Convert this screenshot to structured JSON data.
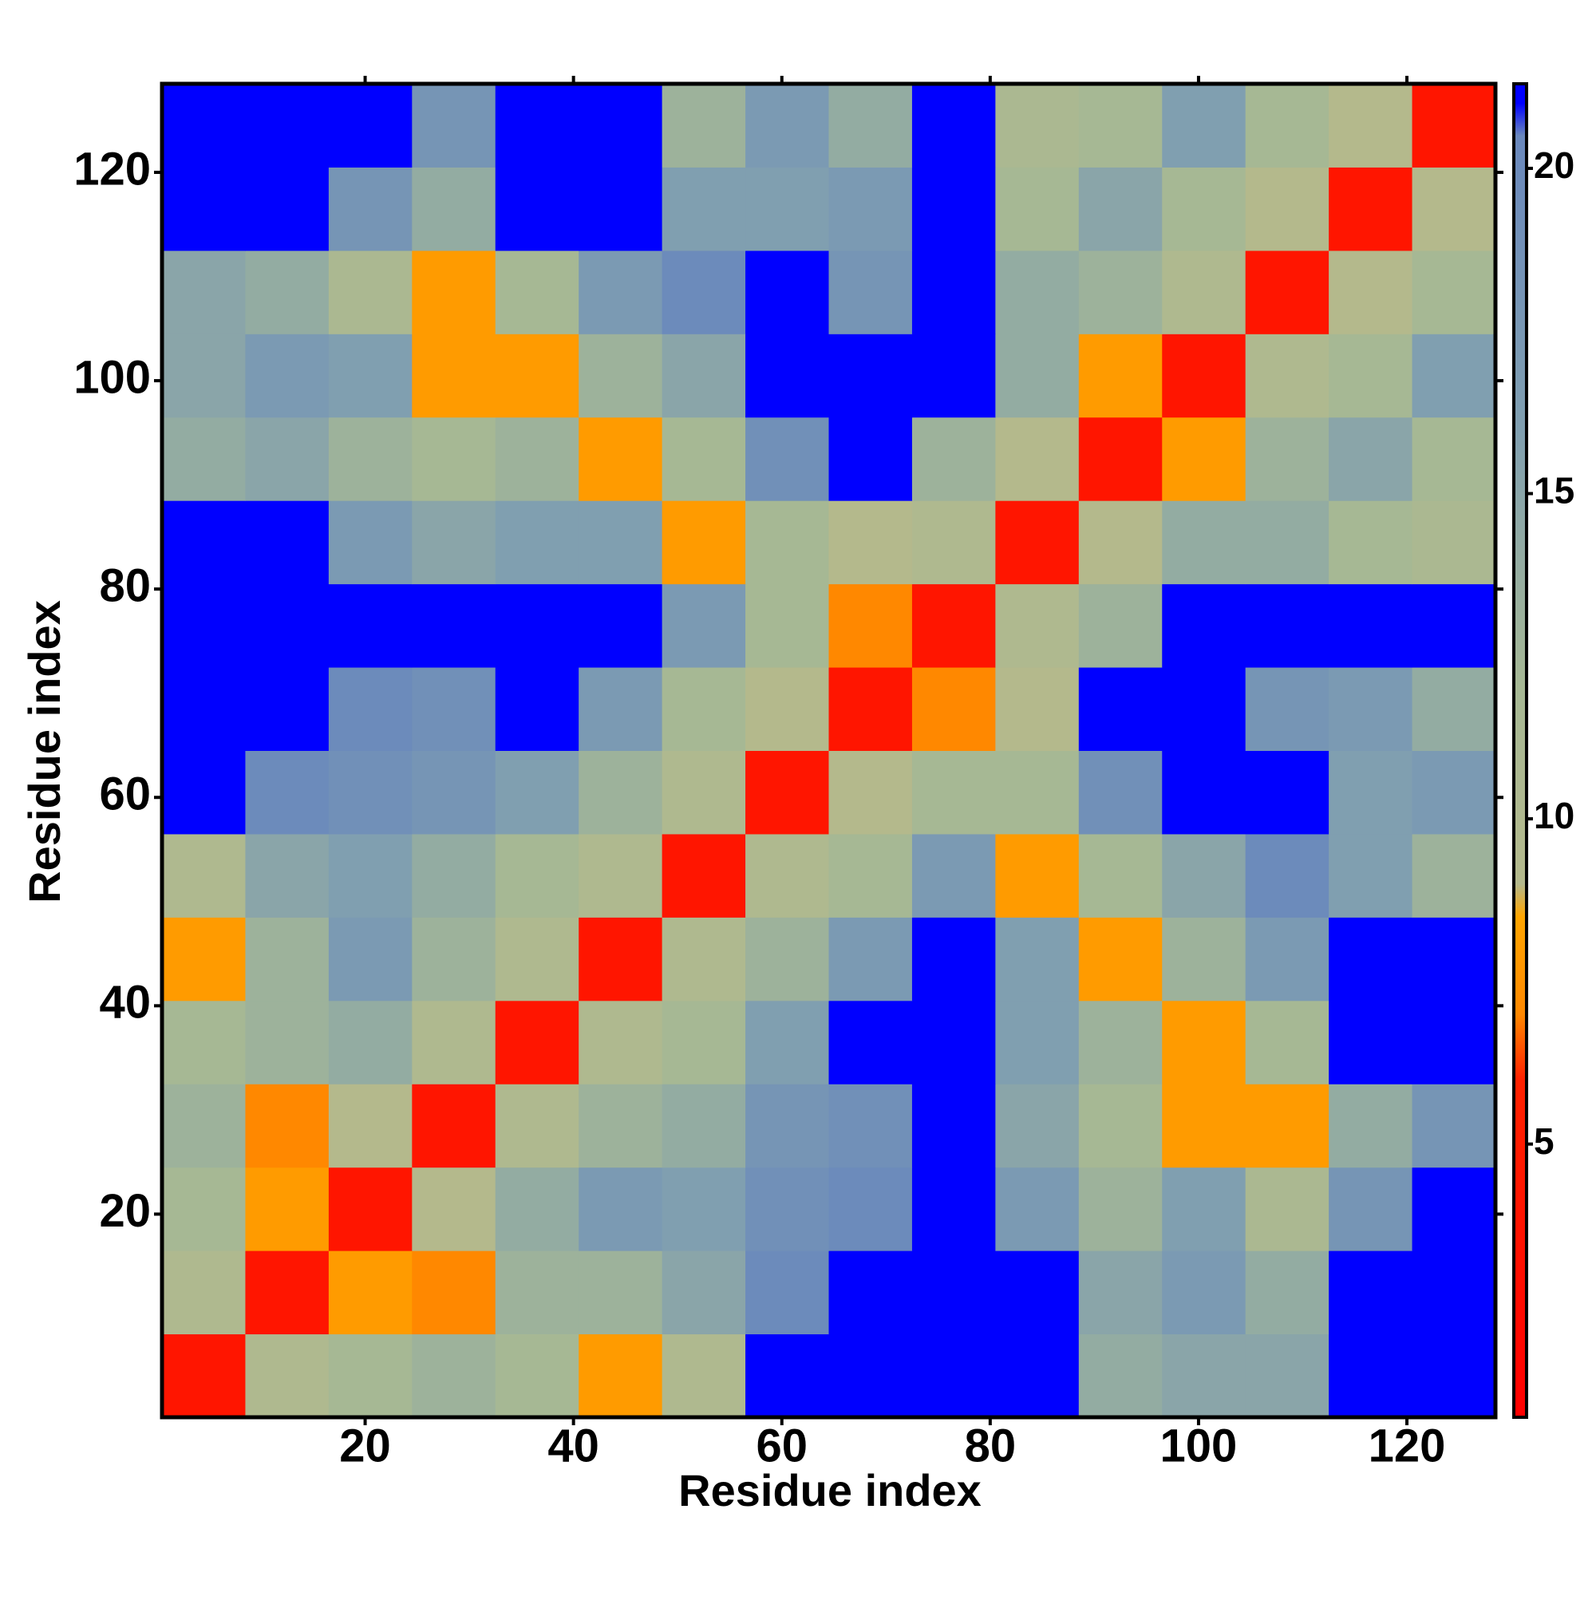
{
  "chart_data": {
    "type": "heatmap",
    "x_label": "Residue index",
    "y_label": "Residue index",
    "xlim": [
      0.5,
      128.5
    ],
    "ylim": [
      0.5,
      128.5
    ],
    "xticks": [
      20,
      40,
      60,
      80,
      100,
      120
    ],
    "yticks": [
      20,
      40,
      60,
      80,
      100,
      120
    ],
    "xbins": [
      0.5,
      8.5,
      16.5,
      24.5,
      32.5,
      40.5,
      48.5,
      56.5,
      64.5,
      72.5,
      80.5,
      88.5,
      96.5,
      104.5,
      112.5,
      120.5,
      128.5
    ],
    "ybins": [
      0.5,
      8.5,
      16.5,
      24.5,
      32.5,
      40.5,
      48.5,
      56.5,
      64.5,
      72.5,
      80.5,
      88.5,
      96.5,
      104.5,
      112.5,
      120.5,
      128.5
    ],
    "z": [
      [
        4,
        10,
        12,
        13,
        12,
        8,
        10,
        21,
        21,
        21,
        21,
        14,
        15,
        15,
        21,
        21
      ],
      [
        10,
        4,
        8,
        7,
        13,
        13,
        15,
        20,
        21,
        21,
        21,
        15,
        17,
        14,
        21,
        21
      ],
      [
        12,
        8,
        4,
        9,
        14,
        17,
        16,
        19,
        20,
        21,
        17,
        13,
        16,
        11,
        18,
        21
      ],
      [
        13,
        7,
        9,
        4,
        10,
        13,
        14,
        18,
        19,
        21,
        15,
        12,
        8,
        8,
        14,
        18
      ],
      [
        12,
        13,
        14,
        10,
        4,
        10,
        12,
        16,
        21,
        21,
        16,
        13,
        8,
        12,
        21,
        21
      ],
      [
        8,
        13,
        17,
        13,
        10,
        4,
        10,
        13,
        17,
        21,
        16,
        8,
        13,
        17,
        21,
        21
      ],
      [
        10,
        15,
        16,
        14,
        12,
        10,
        4,
        10,
        12,
        17,
        8,
        12,
        15,
        20,
        16,
        13
      ],
      [
        21,
        20,
        19,
        18,
        16,
        13,
        10,
        4,
        9,
        12,
        12,
        19,
        21,
        21,
        16,
        17
      ],
      [
        21,
        21,
        20,
        19,
        21,
        17,
        12,
        9,
        4,
        7,
        9,
        21,
        21,
        18,
        17,
        14
      ],
      [
        21,
        21,
        21,
        21,
        21,
        21,
        17,
        12,
        7,
        4,
        10,
        13,
        21,
        21,
        21,
        21
      ],
      [
        21,
        21,
        17,
        15,
        16,
        16,
        8,
        12,
        9,
        10,
        4,
        9,
        14,
        14,
        12,
        11
      ],
      [
        14,
        15,
        13,
        12,
        13,
        8,
        12,
        19,
        21,
        13,
        9,
        4,
        8,
        13,
        15,
        12
      ],
      [
        15,
        17,
        16,
        8,
        8,
        13,
        15,
        21,
        21,
        21,
        14,
        8,
        4,
        10,
        12,
        16
      ],
      [
        15,
        14,
        11,
        8,
        12,
        17,
        20,
        21,
        18,
        21,
        14,
        13,
        10,
        4,
        9,
        12
      ],
      [
        21,
        21,
        18,
        14,
        21,
        21,
        16,
        16,
        17,
        21,
        12,
        15,
        12,
        9,
        4,
        9
      ],
      [
        21,
        21,
        21,
        18,
        21,
        21,
        13,
        17,
        14,
        21,
        11,
        12,
        16,
        12,
        9,
        4
      ]
    ],
    "zlim": [
      0.8,
      21.3
    ],
    "zticks": [
      5,
      10,
      15,
      20
    ],
    "colorscale": [
      {
        "value": 0.8,
        "color": "#ff0000"
      },
      {
        "value": 6,
        "color": "#ff2200"
      },
      {
        "value": 7,
        "color": "#ff8800"
      },
      {
        "value": 8.5,
        "color": "#ffa500"
      },
      {
        "value": 9,
        "color": "#b4b98c"
      },
      {
        "value": 12,
        "color": "#a6b894"
      },
      {
        "value": 16,
        "color": "#809fb0"
      },
      {
        "value": 20.5,
        "color": "#6a88bc"
      },
      {
        "value": 21,
        "color": "#0000ff"
      }
    ]
  }
}
